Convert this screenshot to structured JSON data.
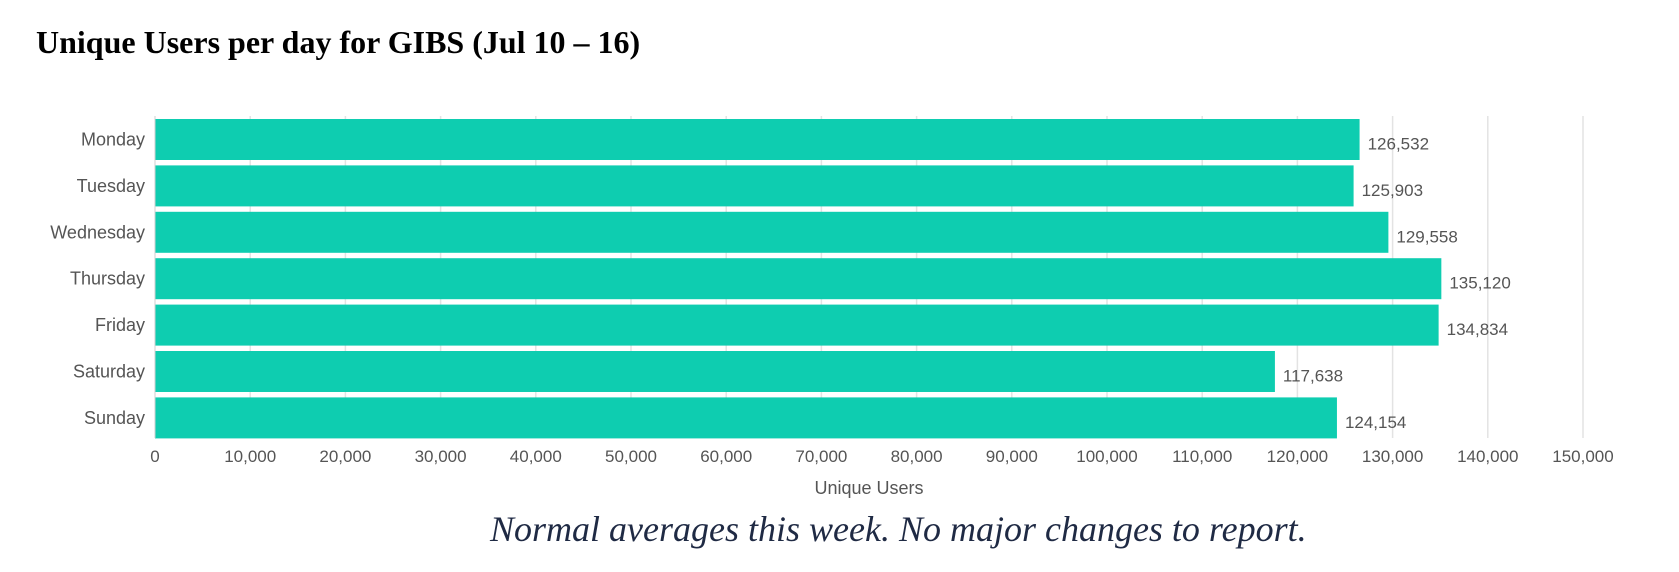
{
  "chart_data": {
    "type": "bar",
    "orientation": "horizontal",
    "title": "Unique Users per day for GIBS (Jul 10 – 16)",
    "xlabel": "Unique Users",
    "ylabel": "",
    "categories": [
      "Monday",
      "Tuesday",
      "Wednesday",
      "Thursday",
      "Friday",
      "Saturday",
      "Sunday"
    ],
    "values": [
      126532,
      125903,
      129558,
      135120,
      134834,
      117638,
      124154
    ],
    "value_labels": [
      "126,532",
      "125,903",
      "129,558",
      "135,120",
      "134,834",
      "117,638",
      "124,154"
    ],
    "xlim": [
      0,
      150000
    ],
    "x_ticks": [
      0,
      10000,
      20000,
      30000,
      40000,
      50000,
      60000,
      70000,
      80000,
      90000,
      100000,
      110000,
      120000,
      130000,
      140000,
      150000
    ],
    "x_tick_labels": [
      "0",
      "10,000",
      "20,000",
      "30,000",
      "40,000",
      "50,000",
      "60,000",
      "70,000",
      "80,000",
      "90,000",
      "100,000",
      "110,000",
      "120,000",
      "130,000",
      "140,000",
      "150,000"
    ],
    "grid": true,
    "legend": "none",
    "bar_color": "#0ecdb0"
  },
  "caption": "Normal averages this week.  No major changes to report.",
  "colors": {
    "bar": "#0ecdb0",
    "grid": "#e3e3e3",
    "axis_text": "#555555",
    "caption": "#1f2a44"
  }
}
